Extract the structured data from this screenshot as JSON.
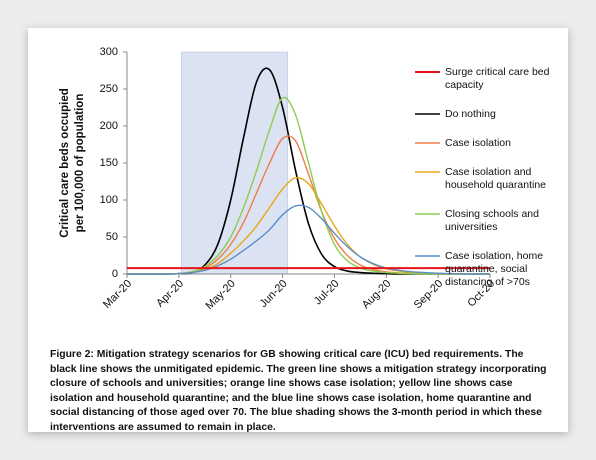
{
  "chart_data": {
    "type": "line",
    "ylabel": [
      "Critical care beds occupied",
      "per 100,000 of population"
    ],
    "x": [
      0,
      0.25,
      0.5,
      0.75,
      1,
      1.25,
      1.5,
      1.75,
      2,
      2.25,
      2.5,
      2.75,
      3,
      3.25,
      3.5,
      3.75,
      4,
      4.25,
      4.5,
      4.75,
      5,
      5.25,
      5.5,
      5.75,
      6,
      6.25,
      6.5,
      6.75,
      7
    ],
    "xlim": [
      0,
      7
    ],
    "xticks": [
      {
        "value": 0,
        "label": "Mar-20"
      },
      {
        "value": 1,
        "label": "Apr-20"
      },
      {
        "value": 2,
        "label": "May-20"
      },
      {
        "value": 3,
        "label": "Jun-20"
      },
      {
        "value": 4,
        "label": "Jul-20"
      },
      {
        "value": 5,
        "label": "Aug-20"
      },
      {
        "value": 6,
        "label": "Sep-20"
      },
      {
        "value": 7,
        "label": "Oct-20"
      }
    ],
    "ylim": [
      0,
      300
    ],
    "yticks": [
      0,
      50,
      100,
      150,
      200,
      250,
      300
    ],
    "shade": {
      "from": 1.05,
      "to": 3.1,
      "color": "#dbe3f3"
    },
    "hlines": [
      {
        "name": "Surge critical care bed capacity",
        "color": "#e8141b",
        "value": 8
      }
    ],
    "series": [
      {
        "name": "Do nothing",
        "color": "#000000",
        "values": [
          0,
          0,
          0,
          0,
          0.5,
          2,
          12,
          40,
          100,
          185,
          260,
          276,
          225,
          140,
          68,
          27,
          10,
          4,
          2,
          1,
          0.5,
          0,
          0,
          0,
          0,
          0,
          0,
          0,
          0
        ]
      },
      {
        "name": "Case isolation",
        "color": "#ef7d4a",
        "values": [
          0,
          0,
          0,
          0,
          0.5,
          3,
          8,
          20,
          40,
          70,
          110,
          150,
          183,
          180,
          135,
          85,
          48,
          25,
          12,
          6,
          3,
          1.5,
          1,
          0.5,
          0,
          0,
          0,
          0,
          0
        ]
      },
      {
        "name": "Case isolation and household quarantine",
        "color": "#e6a817",
        "values": [
          0,
          0,
          0,
          0,
          0.5,
          2,
          6,
          14,
          28,
          45,
          65,
          90,
          115,
          130,
          122,
          95,
          65,
          40,
          23,
          13,
          7,
          4,
          2,
          1,
          0.5,
          0,
          0,
          0,
          0
        ]
      },
      {
        "name": "Closing schools and universities",
        "color": "#8ccc4e",
        "values": [
          0,
          0,
          0,
          0,
          0.5,
          3,
          10,
          25,
          50,
          90,
          140,
          195,
          238,
          215,
          150,
          85,
          40,
          18,
          8,
          4,
          2,
          1,
          0.5,
          0,
          0,
          0,
          0,
          0,
          0
        ]
      },
      {
        "name": "Case isolation, home quarantine, social distancing of >70s",
        "color": "#5b8fcc",
        "values": [
          0,
          0,
          0,
          0,
          0.5,
          2,
          5,
          11,
          20,
          32,
          45,
          60,
          80,
          92,
          90,
          75,
          55,
          37,
          23,
          14,
          8,
          5,
          3,
          2,
          1,
          0.5,
          0,
          0,
          0
        ]
      }
    ],
    "caption": "Figure 2: Mitigation strategy scenarios for GB showing critical care (ICU) bed requirements. The black line shows the unmitigated epidemic. The green line shows a mitigation strategy incorporating closure of schools and universities; orange line shows case isolation; yellow line shows case isolation and household quarantine; and the blue line shows case isolation, home quarantine and social distancing of those aged over 70. The blue shading shows the 3-month period in which these interventions are assumed to remain in place."
  }
}
